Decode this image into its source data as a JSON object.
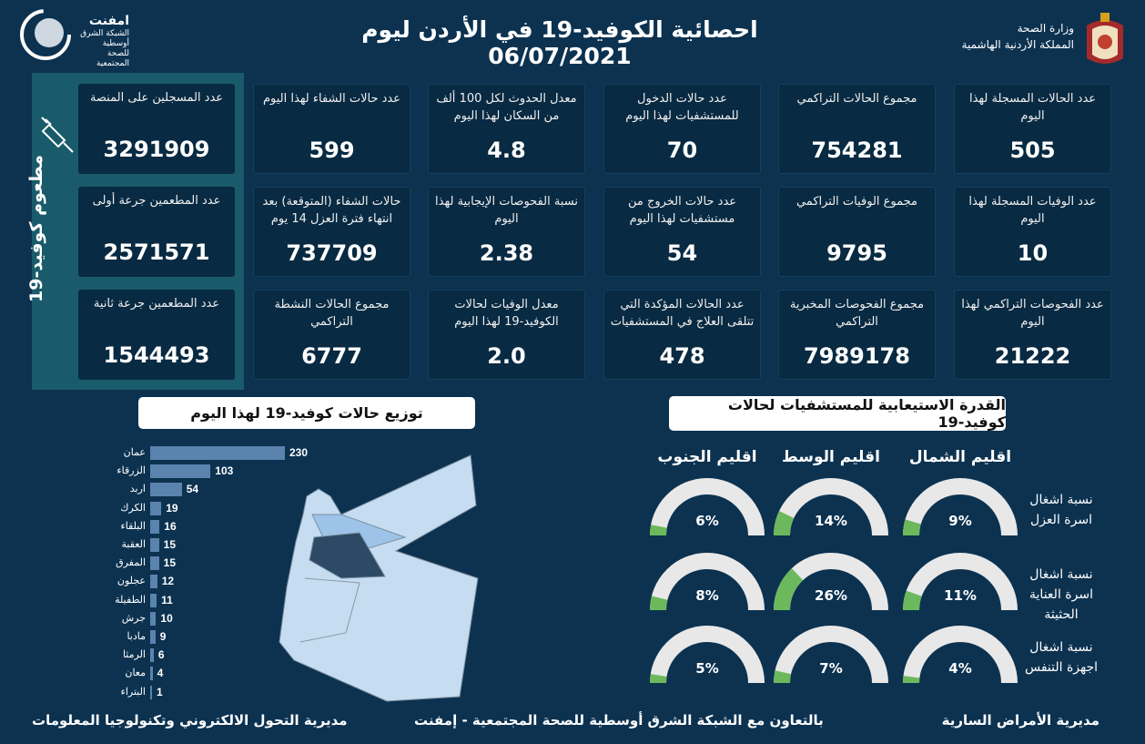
{
  "header": {
    "title": "احصائية الكوفيد-19 في الأردن ليوم  06/07/2021",
    "ministry_line1": "وزارة الصحة",
    "ministry_line2": "المملكة الأردنية الهاشمية",
    "logo_name": "امفنت",
    "logo_sub1": "الشبكة الشرق أوسطية",
    "logo_sub2": "للصحة المجتمعية"
  },
  "vaccine": {
    "title": "مطعوم كوفيد-19",
    "cards": [
      {
        "label": "عدد المسجلين على المنصة",
        "value": "3291909"
      },
      {
        "label": "عدد المطعمين جرعة أولى",
        "value": "2571571"
      },
      {
        "label": "عدد المطعمين جرعة ثانية",
        "value": "1544493"
      }
    ]
  },
  "stats": [
    [
      {
        "label": "عدد الحالات المسجلة لهذا اليوم",
        "value": "505"
      },
      {
        "label": "عدد الوفيات المسجلة لهذا اليوم",
        "value": "10"
      },
      {
        "label": "عدد الفحوصات التراكمي لهذا اليوم",
        "value": "21222"
      }
    ],
    [
      {
        "label": "مجموع الحالات التراكمي",
        "value": "754281"
      },
      {
        "label": "مجموع الوفيات التراكمي",
        "value": "9795"
      },
      {
        "label": "مجموع الفحوصات المخبرية التراكمي",
        "value": "7989178"
      }
    ],
    [
      {
        "label": "عدد حالات الدخول للمستشفيات لهذا اليوم",
        "value": "70"
      },
      {
        "label": "عدد حالات الخروج من مستشفيات لهذا اليوم",
        "value": "54"
      },
      {
        "label": "عدد الحالات المؤكدة التي تتلقى العلاج في المستشفيات",
        "value": "478"
      }
    ],
    [
      {
        "label": "معدل الحدوث لكل 100 ألف من السكان لهذا اليوم",
        "value": "4.8"
      },
      {
        "label": "نسبة الفحوصات الإيجابية لهذا اليوم",
        "value": "2.38"
      },
      {
        "label": "معدل الوفيات لحالات الكوفيد-19 لهذا اليوم",
        "value": "2.0"
      }
    ],
    [
      {
        "label": "عدد حالات الشفاء لهذا اليوم",
        "value": "599"
      },
      {
        "label": "حالات الشفاء (المتوقعة) بعد انتهاء فترة العزل 14 يوم",
        "value": "737709"
      },
      {
        "label": "مجموع الحالات النشطة التراكمي",
        "value": "6777"
      }
    ]
  ],
  "chart_data": {
    "type": "bar",
    "title": "توزيع حالات كوفيد-19 لهذا اليوم",
    "orientation": "horizontal",
    "categories": [
      "عمان",
      "الزرقاء",
      "اربد",
      "الكرك",
      "البلقاء",
      "العقبة",
      "المفرق",
      "عجلون",
      "الطفيلة",
      "جرش",
      "مادبا",
      "الرمثا",
      "معان",
      "البتراء"
    ],
    "values": [
      230,
      103,
      54,
      19,
      16,
      15,
      15,
      12,
      11,
      10,
      9,
      6,
      4,
      1
    ],
    "bar_color": "#5a84ae"
  },
  "capacity": {
    "title": "القدرة الاستيعابية للمستشفيات لحالات كوفيد-19",
    "regions": [
      "اقليم الشمال",
      "اقليم الوسط",
      "اقليم الجنوب"
    ],
    "rows": [
      {
        "label": "نسبة اشغال اسرة العزل",
        "values": [
          9,
          14,
          6
        ],
        "texts": [
          "9%",
          "14%",
          "6%"
        ]
      },
      {
        "label": "نسبة اشغال اسرة العناية الحثيثة",
        "values": [
          11,
          26,
          8
        ],
        "texts": [
          "11%",
          "26%",
          "8%"
        ]
      },
      {
        "label": "نسبة اشغال اجهزة التنفس",
        "values": [
          4,
          7,
          5
        ],
        "texts": [
          "4%",
          "7%",
          "5%"
        ]
      }
    ],
    "fill_color": "#6cb85c",
    "track_color": "#e8e8e8"
  },
  "footer": {
    "right": "مديرية الأمراض السارية",
    "center": "بالتعاون مع الشبكة الشرق أوسطية للصحة المجتمعية - إمفنت",
    "left": "مديرية التحول الالكتروني وتكنولوجيا المعلومات"
  }
}
